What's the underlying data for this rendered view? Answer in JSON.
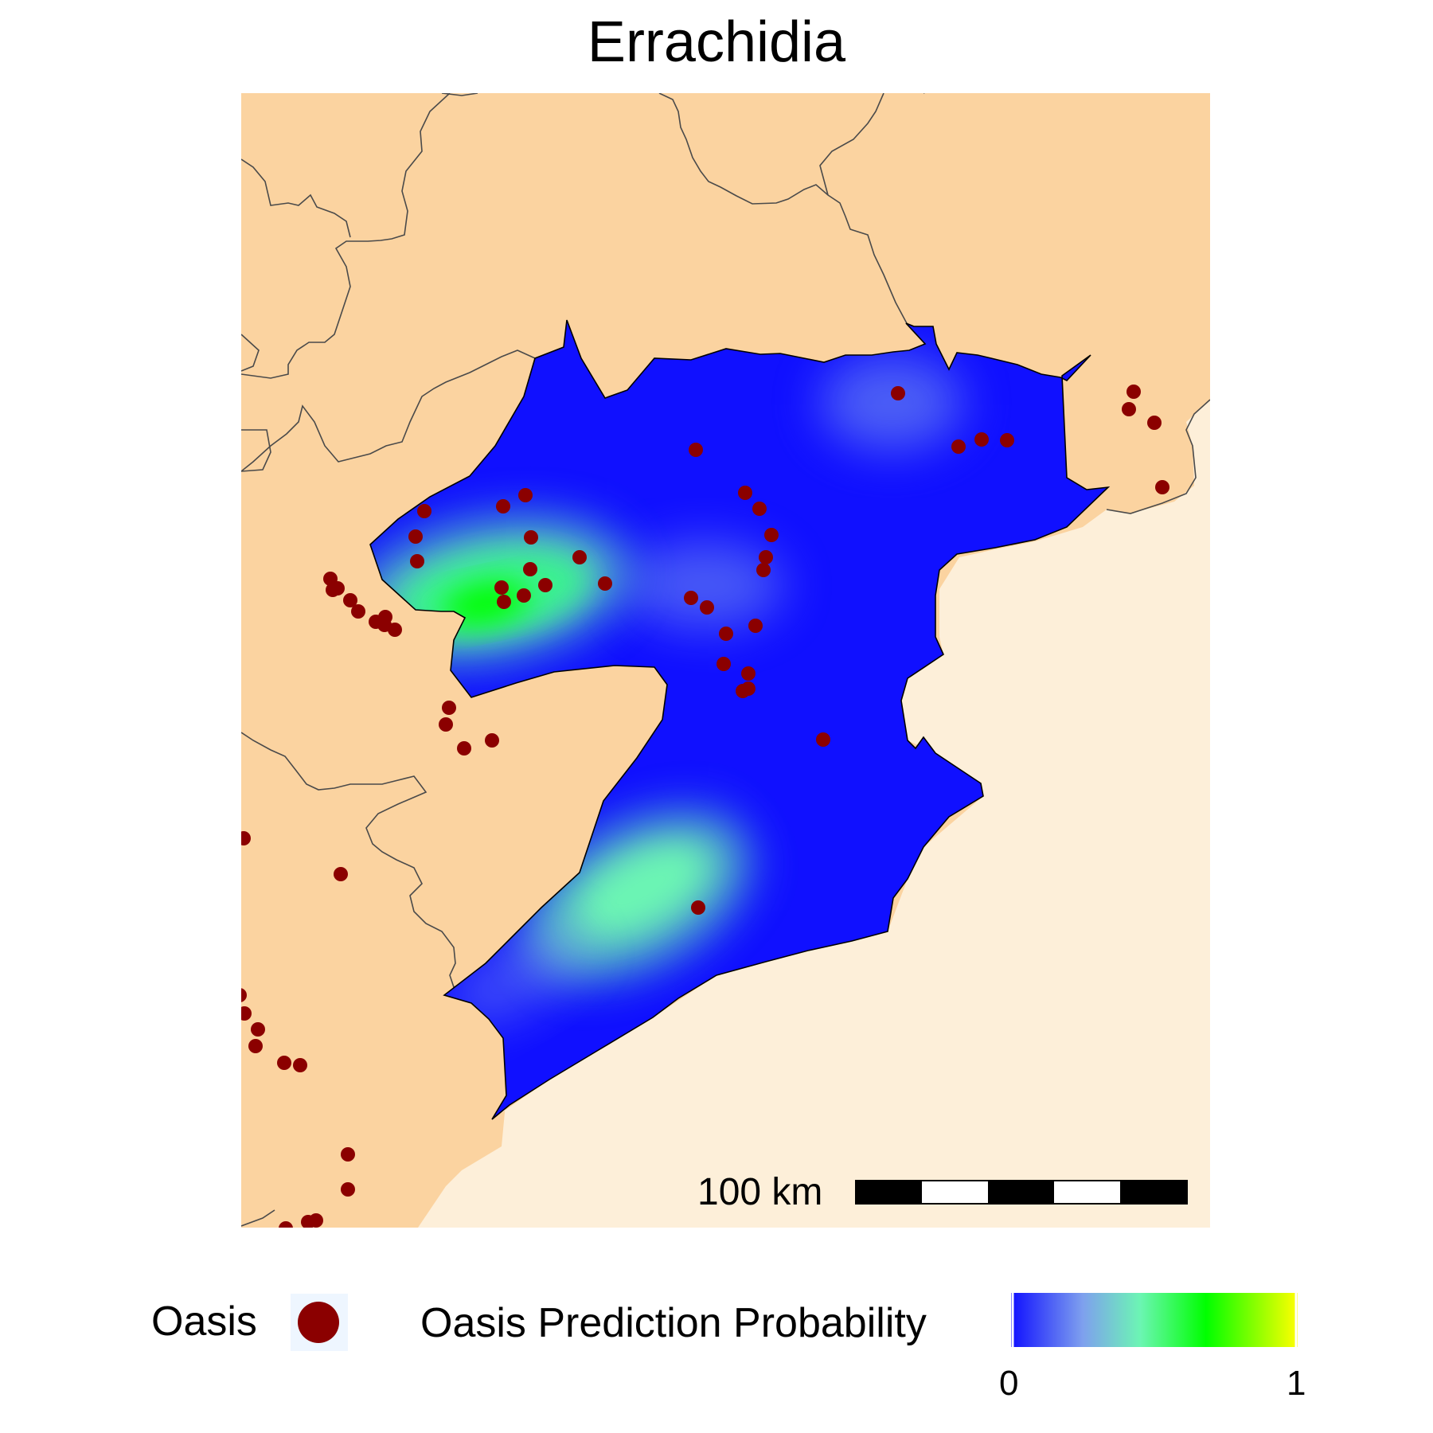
{
  "title": "Errachidia",
  "scale_bar": {
    "label": "100 km"
  },
  "legend": {
    "oasis_label": "Oasis",
    "probability_label": "Oasis Prediction Probability",
    "tick_min": "0",
    "tick_max": "1"
  },
  "colors": {
    "land": "#fbd3a0",
    "desert_region": "#fdefd9",
    "boundary": "#4a4a4a",
    "province_outline": "#000000",
    "oasis_point": "#8b0000",
    "low_probability": "#1010ff",
    "mid_probability": "#6cf5b4",
    "high_probability": "#00ff00",
    "max_probability": "#ffff00"
  },
  "colorbar_stops": [
    "#1010ff",
    "#7ea0ee",
    "#6cf5b4",
    "#00ff00",
    "#ffff00"
  ],
  "hotspots": [
    {
      "name": "western-hotspot",
      "peak_probability": 0.72
    },
    {
      "name": "southern-hotspot",
      "peak_probability": 0.5
    },
    {
      "name": "northeastern-hotspot",
      "peak_probability": 0.2
    },
    {
      "name": "central-hotspot",
      "peak_probability": 0.2
    }
  ]
}
